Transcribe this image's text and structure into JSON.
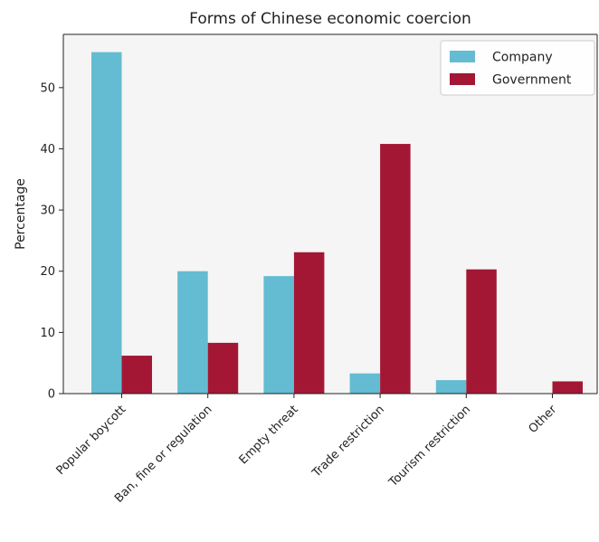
{
  "chart_data": {
    "type": "bar",
    "title": "Forms of Chinese economic coercion",
    "xlabel": "",
    "ylabel": "Percentage",
    "categories": [
      "Popular boycott",
      "Ban, fine or regulation",
      "Empty threat",
      "Trade restriction",
      "Tourism restriction",
      "Other"
    ],
    "series": [
      {
        "name": "Company",
        "color": "#63bcd1",
        "values": [
          55.8,
          20.0,
          19.2,
          3.3,
          2.2,
          0
        ]
      },
      {
        "name": "Government",
        "color": "#a31735",
        "values": [
          6.2,
          8.3,
          23.1,
          40.8,
          20.3,
          2.0
        ]
      }
    ],
    "ylim": [
      0,
      58.7
    ],
    "yticks": [
      0,
      10,
      20,
      30,
      40,
      50
    ],
    "grid": false,
    "legend_position": "top-right",
    "plot_background": "#f5f5f5"
  }
}
